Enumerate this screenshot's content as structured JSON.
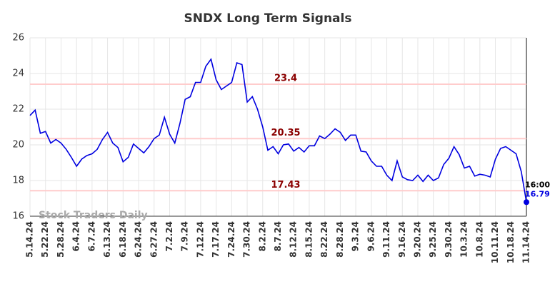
{
  "chart_data": {
    "type": "line",
    "title": "SNDX Long Term Signals",
    "categories": [
      "5.14.24",
      null,
      null,
      "5.22.24",
      null,
      null,
      "5.28.24",
      null,
      null,
      "6.4.24",
      null,
      null,
      "6.7.24",
      null,
      null,
      "6.13.24",
      null,
      null,
      "6.18.24",
      null,
      null,
      "6.24.24",
      null,
      null,
      "6.27.24",
      null,
      null,
      "7.2.24",
      null,
      null,
      "7.9.24",
      null,
      null,
      "7.12.24",
      null,
      null,
      "7.17.24",
      null,
      null,
      "7.24.24",
      null,
      null,
      "7.30.24",
      null,
      null,
      "8.2.24",
      null,
      null,
      "8.7.24",
      null,
      null,
      "8.12.24",
      null,
      null,
      "8.15.24",
      null,
      null,
      "8.22.24",
      null,
      null,
      "8.28.24",
      null,
      null,
      "9.3.24",
      null,
      null,
      "9.6.24",
      null,
      null,
      "9.11.24",
      null,
      null,
      "9.16.24",
      null,
      null,
      "9.20.24",
      null,
      null,
      "9.25.24",
      null,
      null,
      "9.30.24",
      null,
      null,
      "10.3.24",
      null,
      null,
      "10.8.24",
      null,
      null,
      "10.11.24",
      null,
      null,
      "10.18.24",
      null,
      null,
      "11.14.24"
    ],
    "series": [
      {
        "name": "SNDX",
        "color": "#0000e0",
        "values": [
          21.65,
          21.95,
          20.65,
          20.75,
          20.1,
          20.3,
          20.1,
          19.75,
          19.3,
          18.8,
          19.2,
          19.4,
          19.5,
          19.75,
          20.3,
          20.7,
          20.1,
          19.85,
          19.05,
          19.3,
          20.05,
          19.8,
          19.55,
          19.9,
          20.35,
          20.55,
          21.55,
          20.6,
          20.1,
          21.2,
          22.55,
          22.7,
          23.5,
          23.5,
          24.4,
          24.8,
          23.65,
          23.1,
          23.3,
          23.5,
          24.6,
          24.5,
          22.4,
          22.7,
          22.0,
          21.0,
          19.7,
          19.9,
          19.5,
          20.0,
          20.05,
          19.65,
          19.85,
          19.6,
          19.95,
          19.95,
          20.5,
          20.35,
          20.6,
          20.9,
          20.7,
          20.25,
          20.55,
          20.55,
          19.65,
          19.6,
          19.1,
          18.8,
          18.8,
          18.3,
          18.0,
          19.1,
          18.2,
          18.05,
          18.0,
          18.3,
          17.95,
          18.3,
          18.0,
          18.15,
          18.9,
          19.25,
          19.9,
          19.45,
          18.7,
          18.8,
          18.25,
          18.35,
          18.3,
          18.2,
          19.2,
          19.8,
          19.9,
          19.7,
          19.5,
          18.5,
          16.79
        ]
      }
    ],
    "ylim": [
      16,
      26
    ],
    "yticks": [
      16,
      18,
      20,
      22,
      24,
      26
    ],
    "grid": true,
    "hlines": [
      23.4,
      20.35,
      17.43
    ],
    "hline_color": "#ffcccc",
    "hline_label_color": "#8b0000",
    "last_time": "16:00",
    "watermark": "Stock Traders Daily"
  }
}
